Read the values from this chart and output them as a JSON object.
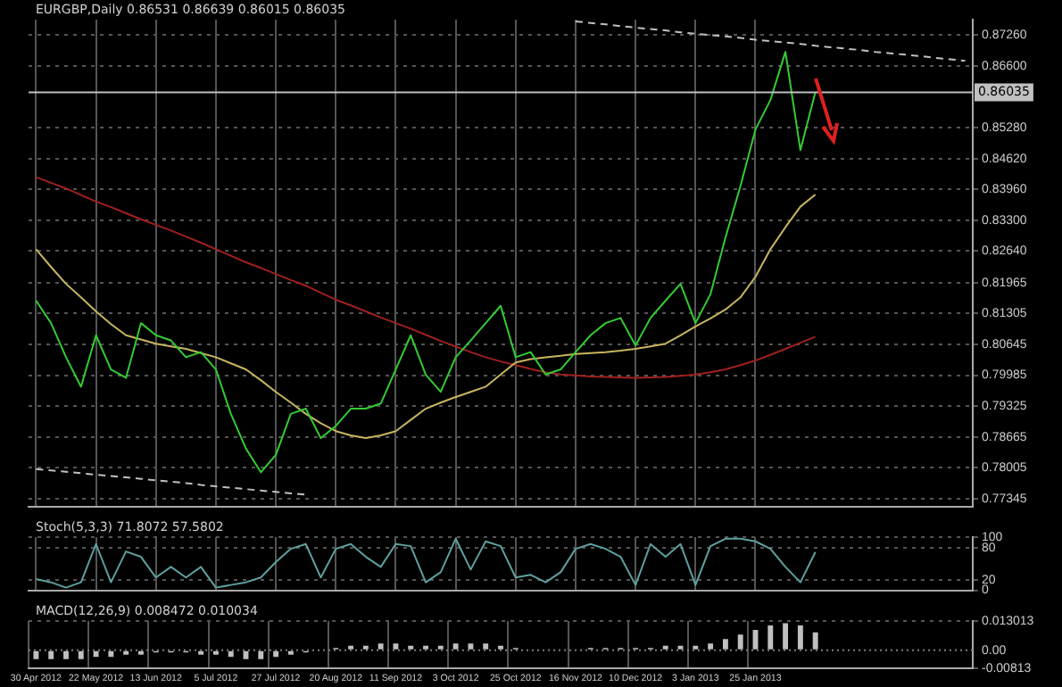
{
  "chart_data": [
    {
      "type": "line",
      "title": "EURGBP,Daily 0.86531 0.86639 0.86015 0.86035",
      "tick_labels": "y",
      "grid": true,
      "marker": "none",
      "ylim": [
        0.7718,
        0.8759
      ],
      "yticks": [
        {
          "value": 0.8726,
          "label": "0.87260"
        },
        {
          "value": 0.866,
          "label": "0.86600"
        },
        {
          "value": 0.8528,
          "label": "0.85280"
        },
        {
          "value": 0.8462,
          "label": "0.84620"
        },
        {
          "value": 0.8396,
          "label": "0.83960"
        },
        {
          "value": 0.833,
          "label": "0.83300"
        },
        {
          "value": 0.8264,
          "label": "0.82640"
        },
        {
          "value": 0.81965,
          "label": "0.81965"
        },
        {
          "value": 0.81305,
          "label": "0.81305"
        },
        {
          "value": 0.80645,
          "label": "0.80645"
        },
        {
          "value": 0.79985,
          "label": "0.79985"
        },
        {
          "value": 0.79325,
          "label": "0.79325"
        },
        {
          "value": 0.78665,
          "label": "0.78665"
        },
        {
          "value": 0.78005,
          "label": "0.78005"
        },
        {
          "value": 0.77345,
          "label": "0.77345"
        }
      ],
      "ref_lines": [
        {
          "axis": "y",
          "value": 0.86035,
          "label": "0.86035",
          "color": "#c0c0c0"
        }
      ],
      "series": [
        {
          "color": "#33cc33",
          "values": [
            0.8158,
            0.811,
            0.8037,
            0.7974,
            0.8084,
            0.8011,
            0.7993,
            0.811,
            0.8084,
            0.8073,
            0.8037,
            0.8048,
            0.8011,
            0.7916,
            0.7842,
            0.7791,
            0.7828,
            0.7916,
            0.7927,
            0.7864,
            0.789,
            0.7927,
            0.7927,
            0.7938,
            0.8011,
            0.8084,
            0.8,
            0.7963,
            0.8037,
            0.8073,
            0.811,
            0.8147,
            0.8037,
            0.8048,
            0.8,
            0.8011,
            0.8048,
            0.8084,
            0.811,
            0.8121,
            0.8062,
            0.8121,
            0.8158,
            0.8194,
            0.811,
            0.8172,
            0.8293,
            0.8403,
            0.8524,
            0.8587,
            0.869,
            0.848,
            0.8604,
            null,
            null,
            null,
            null,
            null,
            null,
            null,
            null,
            null,
            null
          ]
        },
        {
          "color": "#c8b560",
          "values": [
            0.8268,
            0.823,
            0.8194,
            0.8165,
            0.8135,
            0.8108,
            0.8084,
            0.8075,
            0.8066,
            0.806,
            0.8055,
            0.8046,
            0.8037,
            0.8024,
            0.8011,
            0.7988,
            0.7963,
            0.794,
            0.7916,
            0.7896,
            0.7879,
            0.787,
            0.7864,
            0.787,
            0.7879,
            0.7903,
            0.7927,
            0.794,
            0.7952,
            0.7963,
            0.7974,
            0.8,
            0.8026,
            0.8033,
            0.8037,
            0.804,
            0.8044,
            0.8046,
            0.8048,
            0.8051,
            0.8055,
            0.806,
            0.8066,
            0.8084,
            0.8103,
            0.812,
            0.8139,
            0.8165,
            0.8209,
            0.8268,
            0.8315,
            0.8359,
            0.8385,
            null,
            null,
            null,
            null,
            null,
            null,
            null,
            null,
            null,
            null
          ]
        },
        {
          "color": "#a02020",
          "values": [
            0.8422,
            0.841,
            0.8398,
            0.8384,
            0.837,
            0.8358,
            0.8345,
            0.8332,
            0.832,
            0.8308,
            0.8295,
            0.8282,
            0.8268,
            0.8254,
            0.824,
            0.8228,
            0.8215,
            0.8202,
            0.819,
            0.8175,
            0.816,
            0.8148,
            0.8135,
            0.8122,
            0.811,
            0.8098,
            0.8085,
            0.8072,
            0.806,
            0.8048,
            0.8037,
            0.8028,
            0.802,
            0.8012,
            0.8005,
            0.8,
            0.7998,
            0.7996,
            0.7995,
            0.7994,
            0.7993,
            0.7994,
            0.7995,
            0.7997,
            0.8,
            0.8005,
            0.8011,
            0.802,
            0.803,
            0.8042,
            0.8055,
            0.8068,
            0.8081,
            null,
            null,
            null,
            null,
            null,
            null,
            null,
            null,
            null,
            null
          ]
        },
        {
          "color": "#c0c0c0",
          "line_style": "dashed",
          "values": [
            null,
            null,
            null,
            null,
            null,
            null,
            null,
            null,
            null,
            null,
            null,
            null,
            null,
            null,
            null,
            null,
            null,
            null,
            null,
            null,
            null,
            null,
            null,
            null,
            null,
            null,
            null,
            null,
            null,
            null,
            null,
            null,
            null,
            null,
            null,
            null,
            0.8755,
            0.8752,
            0.8749,
            0.8745,
            0.8742,
            0.8739,
            0.8736,
            0.8732,
            0.8729,
            0.8726,
            0.8723,
            0.872,
            0.8716,
            0.8713,
            0.871,
            0.8707,
            0.8703,
            0.87,
            0.8697,
            0.8694,
            0.869,
            0.8687,
            0.8684,
            0.8681,
            0.8677,
            0.8674,
            0.8671
          ]
        },
        {
          "color": "#c0c0c0",
          "line_style": "dashed",
          "values": [
            0.7798,
            0.7795,
            0.7792,
            0.7789,
            0.7786,
            0.7783,
            0.778,
            0.7777,
            0.7774,
            0.7771,
            0.7768,
            0.7764,
            0.7761,
            0.7758,
            0.7755,
            0.7752,
            0.7749,
            0.7746,
            0.7743,
            null,
            null,
            null,
            null,
            null,
            null,
            null,
            null,
            null,
            null,
            null,
            null,
            null,
            null,
            null,
            null,
            null,
            null,
            null,
            null,
            null,
            null,
            null,
            null,
            null,
            null,
            null,
            null,
            null,
            null,
            null,
            null,
            null,
            null,
            null,
            null,
            null,
            null,
            null,
            null,
            null,
            null,
            null,
            null
          ]
        }
      ]
    },
    {
      "type": "line",
      "title": "Stoch(5,3,3) 71.8072 57.5802",
      "tick_labels": "y",
      "grid": true,
      "marker": "none",
      "ylim": [
        0,
        100
      ],
      "yticks": [
        0,
        20,
        80,
        100
      ],
      "series": [
        {
          "color": "#5fa0a0",
          "values": [
            21,
            15,
            5,
            15,
            87,
            15,
            73,
            63,
            24,
            44,
            24,
            44,
            5,
            10,
            15,
            24,
            53,
            78,
            87,
            24,
            78,
            87,
            63,
            44,
            87,
            83,
            15,
            34,
            97,
            39,
            92,
            83,
            24,
            29,
            15,
            34,
            78,
            87,
            78,
            63,
            10,
            87,
            63,
            87,
            10,
            83,
            97,
            97,
            92,
            78,
            44,
            15,
            72,
            null,
            null,
            null,
            null,
            null,
            null,
            null,
            null,
            null,
            null
          ]
        }
      ]
    },
    {
      "type": "bar",
      "title": "MACD(12,26,9) 0.008472 0.010034",
      "grid": true,
      "categories": [
        "30 Apr 2012",
        null,
        null,
        null,
        "22 May 2012",
        null,
        null,
        null,
        "13 Jun 2012",
        null,
        null,
        null,
        "5 Jul 2012",
        null,
        null,
        null,
        "27 Jul 2012",
        null,
        null,
        null,
        "20 Aug 2012",
        null,
        null,
        null,
        "11 Sep 2012",
        null,
        null,
        null,
        "3 Oct 2012",
        null,
        null,
        null,
        "25 Oct 2012",
        null,
        null,
        null,
        "16 Nov 2012",
        null,
        null,
        null,
        "10 Dec 2012",
        null,
        null,
        null,
        "3 Jan 2013",
        null,
        null,
        null,
        "25 Jan 2013",
        null,
        null,
        null,
        null,
        null,
        null,
        null,
        null,
        null,
        null,
        null,
        null,
        null,
        null
      ],
      "ylim": [
        -0.00813,
        0.013013
      ],
      "yticks": [
        {
          "value": -0.00813,
          "label": "-0.00813"
        },
        {
          "value": 0,
          "label": "0.00"
        },
        {
          "value": 0.013013,
          "label": "0.013013"
        }
      ],
      "ref_lines": [
        {
          "axis": "y",
          "value": 0,
          "color": "#808080",
          "line_style": "dotted"
        }
      ],
      "series": [
        {
          "color": "#c0c0c0",
          "values": [
            -0.004,
            -0.004,
            -0.004,
            -0.004,
            -0.003,
            -0.003,
            -0.002,
            -0.002,
            -0.001,
            -0.001,
            -0.001,
            -0.002,
            -0.002,
            -0.003,
            -0.004,
            -0.004,
            -0.003,
            -0.002,
            -0.001,
            0.0,
            0.001,
            0.002,
            0.002,
            0.003,
            0.003,
            0.002,
            0.002,
            0.002,
            0.003,
            0.003,
            0.003,
            0.002,
            0.001,
            0.0,
            0.0,
            0.0,
            0.0,
            0.001,
            0.001,
            0.001,
            0.001,
            0.001,
            0.002,
            0.002,
            0.002,
            0.003,
            0.005,
            0.007,
            0.009,
            0.011,
            0.012,
            0.011,
            0.008,
            null,
            null,
            null,
            null,
            null,
            null,
            null,
            null,
            null,
            null
          ]
        }
      ]
    }
  ]
}
